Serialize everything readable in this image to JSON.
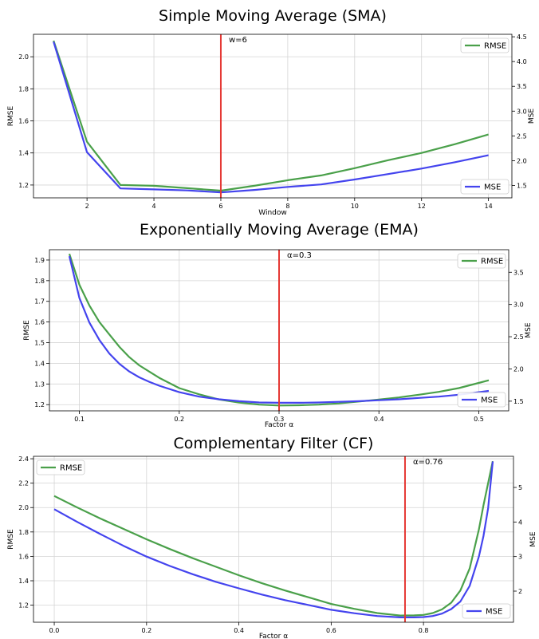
{
  "chart_data": [
    {
      "type": "line",
      "title": "Simple Moving Average (SMA)",
      "xlabel": "Window",
      "ylabel_left": "RMSE",
      "ylabel_right": "MSE",
      "xlim": [
        0.4,
        14.7
      ],
      "ylim_left": [
        1.12,
        2.14
      ],
      "ylim_right": [
        1.25,
        4.55
      ],
      "xticks": [
        2,
        4,
        6,
        8,
        10,
        12,
        14
      ],
      "yticks_left": [
        1.2,
        1.4,
        1.6,
        1.8,
        2.0
      ],
      "yticks_right": [
        1.5,
        2.0,
        2.5,
        3.0,
        3.5,
        4.0,
        4.5
      ],
      "grid": true,
      "series": [
        {
          "name": "RMSE",
          "axis": "left",
          "color": "#4aa04a",
          "x": [
            1,
            2,
            3,
            4,
            5,
            6,
            7,
            8,
            9,
            10,
            11,
            12,
            13,
            14
          ],
          "values": [
            2.1,
            1.47,
            1.2,
            1.195,
            1.18,
            1.165,
            1.195,
            1.23,
            1.26,
            1.305,
            1.355,
            1.4,
            1.455,
            1.515
          ]
        },
        {
          "name": "MSE",
          "axis": "right",
          "color": "#4444ee",
          "x": [
            1,
            2,
            3,
            4,
            5,
            6,
            7,
            8,
            9,
            10,
            11,
            12,
            13,
            14
          ],
          "values": [
            4.4,
            2.17,
            1.44,
            1.42,
            1.4,
            1.36,
            1.41,
            1.47,
            1.52,
            1.62,
            1.73,
            1.84,
            1.97,
            2.11
          ]
        }
      ],
      "vline": {
        "x": 6,
        "label": "w=6",
        "color": "#e53935"
      },
      "legend": [
        {
          "name": "RMSE",
          "position": "top-right"
        },
        {
          "name": "MSE",
          "position": "bottom-right"
        }
      ]
    },
    {
      "type": "line",
      "title": "Exponentially Moving Average (EMA)",
      "xlabel": "Factor α",
      "ylabel_left": "RMSE",
      "ylabel_right": "MSE",
      "xlim": [
        0.07,
        0.53
      ],
      "ylim_left": [
        1.17,
        1.95
      ],
      "ylim_right": [
        1.35,
        3.85
      ],
      "xticks": [
        0.1,
        0.2,
        0.3,
        0.4,
        0.5
      ],
      "yticks_left": [
        1.2,
        1.3,
        1.4,
        1.5,
        1.6,
        1.7,
        1.8,
        1.9
      ],
      "yticks_right": [
        1.5,
        2.0,
        2.5,
        3.0,
        3.5
      ],
      "grid": true,
      "series": [
        {
          "name": "RMSE",
          "axis": "left",
          "color": "#4aa04a",
          "x": [
            0.09,
            0.1,
            0.11,
            0.12,
            0.13,
            0.14,
            0.15,
            0.16,
            0.17,
            0.18,
            0.2,
            0.22,
            0.24,
            0.26,
            0.28,
            0.3,
            0.32,
            0.34,
            0.36,
            0.38,
            0.4,
            0.42,
            0.44,
            0.46,
            0.48,
            0.5,
            0.51
          ],
          "values": [
            1.93,
            1.78,
            1.68,
            1.6,
            1.54,
            1.48,
            1.43,
            1.39,
            1.36,
            1.33,
            1.28,
            1.25,
            1.225,
            1.21,
            1.2,
            1.196,
            1.197,
            1.2,
            1.206,
            1.215,
            1.225,
            1.235,
            1.248,
            1.262,
            1.28,
            1.305,
            1.318
          ]
        },
        {
          "name": "MSE",
          "axis": "right",
          "color": "#4444ee",
          "x": [
            0.09,
            0.1,
            0.11,
            0.12,
            0.13,
            0.14,
            0.15,
            0.16,
            0.17,
            0.18,
            0.2,
            0.22,
            0.24,
            0.26,
            0.28,
            0.3,
            0.32,
            0.34,
            0.36,
            0.38,
            0.4,
            0.42,
            0.44,
            0.46,
            0.48,
            0.5,
            0.51
          ],
          "values": [
            3.75,
            3.1,
            2.72,
            2.45,
            2.24,
            2.08,
            1.96,
            1.87,
            1.8,
            1.74,
            1.64,
            1.57,
            1.53,
            1.5,
            1.48,
            1.475,
            1.475,
            1.48,
            1.49,
            1.5,
            1.515,
            1.53,
            1.55,
            1.57,
            1.6,
            1.64,
            1.66
          ]
        }
      ],
      "vline": {
        "x": 0.3,
        "label": "α=0.3",
        "color": "#e53935"
      },
      "legend": [
        {
          "name": "RMSE",
          "position": "top-right"
        },
        {
          "name": "MSE",
          "position": "bottom-right"
        }
      ]
    },
    {
      "type": "line",
      "title": "Complementary Filter (CF)",
      "xlabel": "Factor α",
      "ylabel_left": "RMSE",
      "ylabel_right": "MSE",
      "xlim": [
        -0.045,
        0.995
      ],
      "ylim_left": [
        1.06,
        2.42
      ],
      "ylim_right": [
        1.1,
        5.9
      ],
      "xticks": [
        0.0,
        0.2,
        0.4,
        0.6,
        0.8
      ],
      "yticks_left": [
        1.2,
        1.4,
        1.6,
        1.8,
        2.0,
        2.2,
        2.4
      ],
      "yticks_right": [
        2,
        3,
        4,
        5
      ],
      "grid": true,
      "series": [
        {
          "name": "RMSE",
          "axis": "left",
          "color": "#4aa04a",
          "x": [
            0.0,
            0.05,
            0.1,
            0.15,
            0.2,
            0.25,
            0.3,
            0.35,
            0.4,
            0.45,
            0.5,
            0.55,
            0.6,
            0.65,
            0.7,
            0.75,
            0.78,
            0.8,
            0.82,
            0.84,
            0.86,
            0.88,
            0.9,
            0.92,
            0.93,
            0.94,
            0.95
          ],
          "values": [
            2.095,
            2.0,
            1.91,
            1.825,
            1.74,
            1.66,
            1.585,
            1.515,
            1.445,
            1.38,
            1.32,
            1.265,
            1.21,
            1.17,
            1.135,
            1.115,
            1.116,
            1.12,
            1.135,
            1.165,
            1.22,
            1.32,
            1.5,
            1.82,
            2.02,
            2.2,
            2.38
          ]
        },
        {
          "name": "MSE",
          "axis": "right",
          "color": "#4444ee",
          "x": [
            0.0,
            0.05,
            0.1,
            0.15,
            0.2,
            0.25,
            0.3,
            0.35,
            0.4,
            0.45,
            0.5,
            0.55,
            0.6,
            0.65,
            0.7,
            0.75,
            0.78,
            0.8,
            0.82,
            0.84,
            0.86,
            0.88,
            0.9,
            0.92,
            0.93,
            0.94,
            0.95
          ],
          "values": [
            4.37,
            4.0,
            3.65,
            3.31,
            3.0,
            2.73,
            2.49,
            2.27,
            2.08,
            1.9,
            1.74,
            1.6,
            1.46,
            1.36,
            1.28,
            1.24,
            1.24,
            1.25,
            1.28,
            1.35,
            1.48,
            1.7,
            2.15,
            3.0,
            3.6,
            4.4,
            5.75
          ]
        }
      ],
      "vline": {
        "x": 0.76,
        "label": "α=0.76",
        "color": "#e53935"
      },
      "legend": [
        {
          "name": "RMSE",
          "position": "top-left"
        },
        {
          "name": "MSE",
          "position": "bottom-right"
        }
      ]
    }
  ]
}
